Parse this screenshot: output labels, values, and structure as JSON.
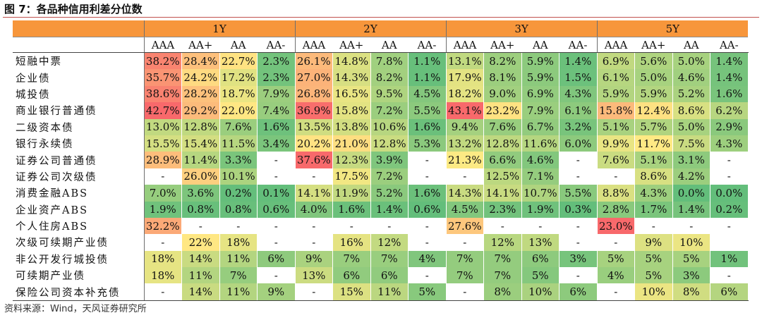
{
  "figure": {
    "title": "图 7：各品种信用利差分位数",
    "source": "资料来源：Wind，天风证券研究所"
  },
  "table": {
    "tenors": [
      "1Y",
      "2Y",
      "3Y",
      "5Y"
    ],
    "ratings": [
      "AAA",
      "AA+",
      "AA",
      "AA-"
    ],
    "rows": [
      {
        "name": "短融中票",
        "values": [
          "38.2%",
          "28.4%",
          "22.7%",
          "2.3%",
          "26.1%",
          "14.8%",
          "7.8%",
          "1.1%",
          "13.1%",
          "8.2%",
          "5.9%",
          "1.4%",
          "6.9%",
          "5.6%",
          "5.0%",
          "1.4%"
        ]
      },
      {
        "name": "企业债",
        "values": [
          "35.7%",
          "24.2%",
          "17.2%",
          "2.3%",
          "27.0%",
          "14.3%",
          "8.2%",
          "1.1%",
          "17.9%",
          "8.1%",
          "5.9%",
          "1.5%",
          "6.1%",
          "5.0%",
          "4.6%",
          "1.4%"
        ]
      },
      {
        "name": "城投债",
        "values": [
          "38.6%",
          "28.2%",
          "18.7%",
          "7.9%",
          "26.8%",
          "16.5%",
          "9.5%",
          "4.5%",
          "18.2%",
          "9.0%",
          "6.9%",
          "4.3%",
          "5.9%",
          "5.9%",
          "5.2%",
          "1.6%"
        ]
      },
      {
        "name": "商业银行普通债",
        "values": [
          "42.7%",
          "29.2%",
          "22.0%",
          "7.4%",
          "36.9%",
          "15.8%",
          "7.2%",
          "5.5%",
          "43.1%",
          "23.2%",
          "7.9%",
          "6.1%",
          "15.8%",
          "12.4%",
          "8.6%",
          "6.2%"
        ]
      },
      {
        "name": "二级资本债",
        "values": [
          "13.0%",
          "12.8%",
          "7.6%",
          "1.6%",
          "13.5%",
          "13.8%",
          "10.6%",
          "1.6%",
          "9.4%",
          "7.6%",
          "6.7%",
          "3.2%",
          "5.1%",
          "5.7%",
          "5.0%",
          "2.9%"
        ]
      },
      {
        "name": "银行永续债",
        "values": [
          "15.5%",
          "15.4%",
          "11.5%",
          "3.4%",
          "20.2%",
          "21.0%",
          "12.8%",
          "5.3%",
          "13.2%",
          "12.8%",
          "11.6%",
          "6.0%",
          "9.9%",
          "11.7%",
          "7.5%",
          "4.3%"
        ]
      },
      {
        "name": "证券公司普通债",
        "values": [
          "28.9%",
          "11.4%",
          "3.3%",
          "-",
          "37.6%",
          "12.3%",
          "3.9%",
          "-",
          "21.3%",
          "6.6%",
          "4.6%",
          "-",
          "7.6%",
          "5.1%",
          "3.1%",
          "-"
        ]
      },
      {
        "name": "证券公司次级债",
        "values": [
          "-",
          "26.0%",
          "10.1%",
          "-",
          "-",
          "17.5%",
          "7.2%",
          "-",
          "-",
          "12.5%",
          "7.1%",
          "-",
          "-",
          "8.6%",
          "4.2%",
          "-"
        ]
      },
      {
        "name": "消费金融ABS",
        "values": [
          "7.0%",
          "3.6%",
          "0.2%",
          "0.1%",
          "14.1%",
          "11.9%",
          "5.2%",
          "1.6%",
          "14.3%",
          "14.1%",
          "10.7%",
          "5.5%",
          "8.8%",
          "4.3%",
          "0.0%",
          "0.0%"
        ]
      },
      {
        "name": "企业资产ABS",
        "values": [
          "1.9%",
          "0.8%",
          "0.8%",
          "0.6%",
          "4.0%",
          "1.6%",
          "1.4%",
          "0.6%",
          "4.5%",
          "2.3%",
          "1.9%",
          "0.3%",
          "2.8%",
          "1.7%",
          "1.4%",
          "0.2%"
        ]
      },
      {
        "name": "个人住房ABS",
        "values": [
          "32.2%",
          "-",
          "-",
          "-",
          "-",
          "-",
          "-",
          "-",
          "27.6%",
          "-",
          "-",
          "-",
          "23.0%",
          "-",
          "-",
          "-"
        ]
      },
      {
        "name": "次级可续期产业债",
        "values": [
          "-",
          "22%",
          "18%",
          "-",
          "-",
          "16%",
          "12%",
          "-",
          "-",
          "12%",
          "13%",
          "-",
          "-",
          "9%",
          "10%",
          ""
        ]
      },
      {
        "name": "非公开发行城投债",
        "values": [
          "18%",
          "14%",
          "11%",
          "6%",
          "9%",
          "7%",
          "7%",
          "4%",
          "7%",
          "7%",
          "6%",
          "3%",
          "5%",
          "5%",
          "5%",
          "1%"
        ]
      },
      {
        "name": "可续期产业债",
        "values": [
          "18%",
          "11%",
          "7%",
          "-",
          "13%",
          "6%",
          "6%",
          "-",
          "7%",
          "7%",
          "5%",
          "-",
          "4%",
          "5%",
          "3%",
          "-"
        ]
      },
      {
        "name": "保险公司资本补充债",
        "values": [
          "-",
          "14%",
          "11%",
          "9%",
          "-",
          "15%",
          "11%",
          "5%",
          "-",
          "8%",
          "10%",
          "6%",
          "-",
          "10%",
          "8%",
          "6%"
        ]
      }
    ]
  },
  "colors": {
    "header_orange": "#f7963b",
    "scale_high": "#f8696b",
    "scale_mid": "#ffeb84",
    "scale_low": "#63be7b"
  }
}
